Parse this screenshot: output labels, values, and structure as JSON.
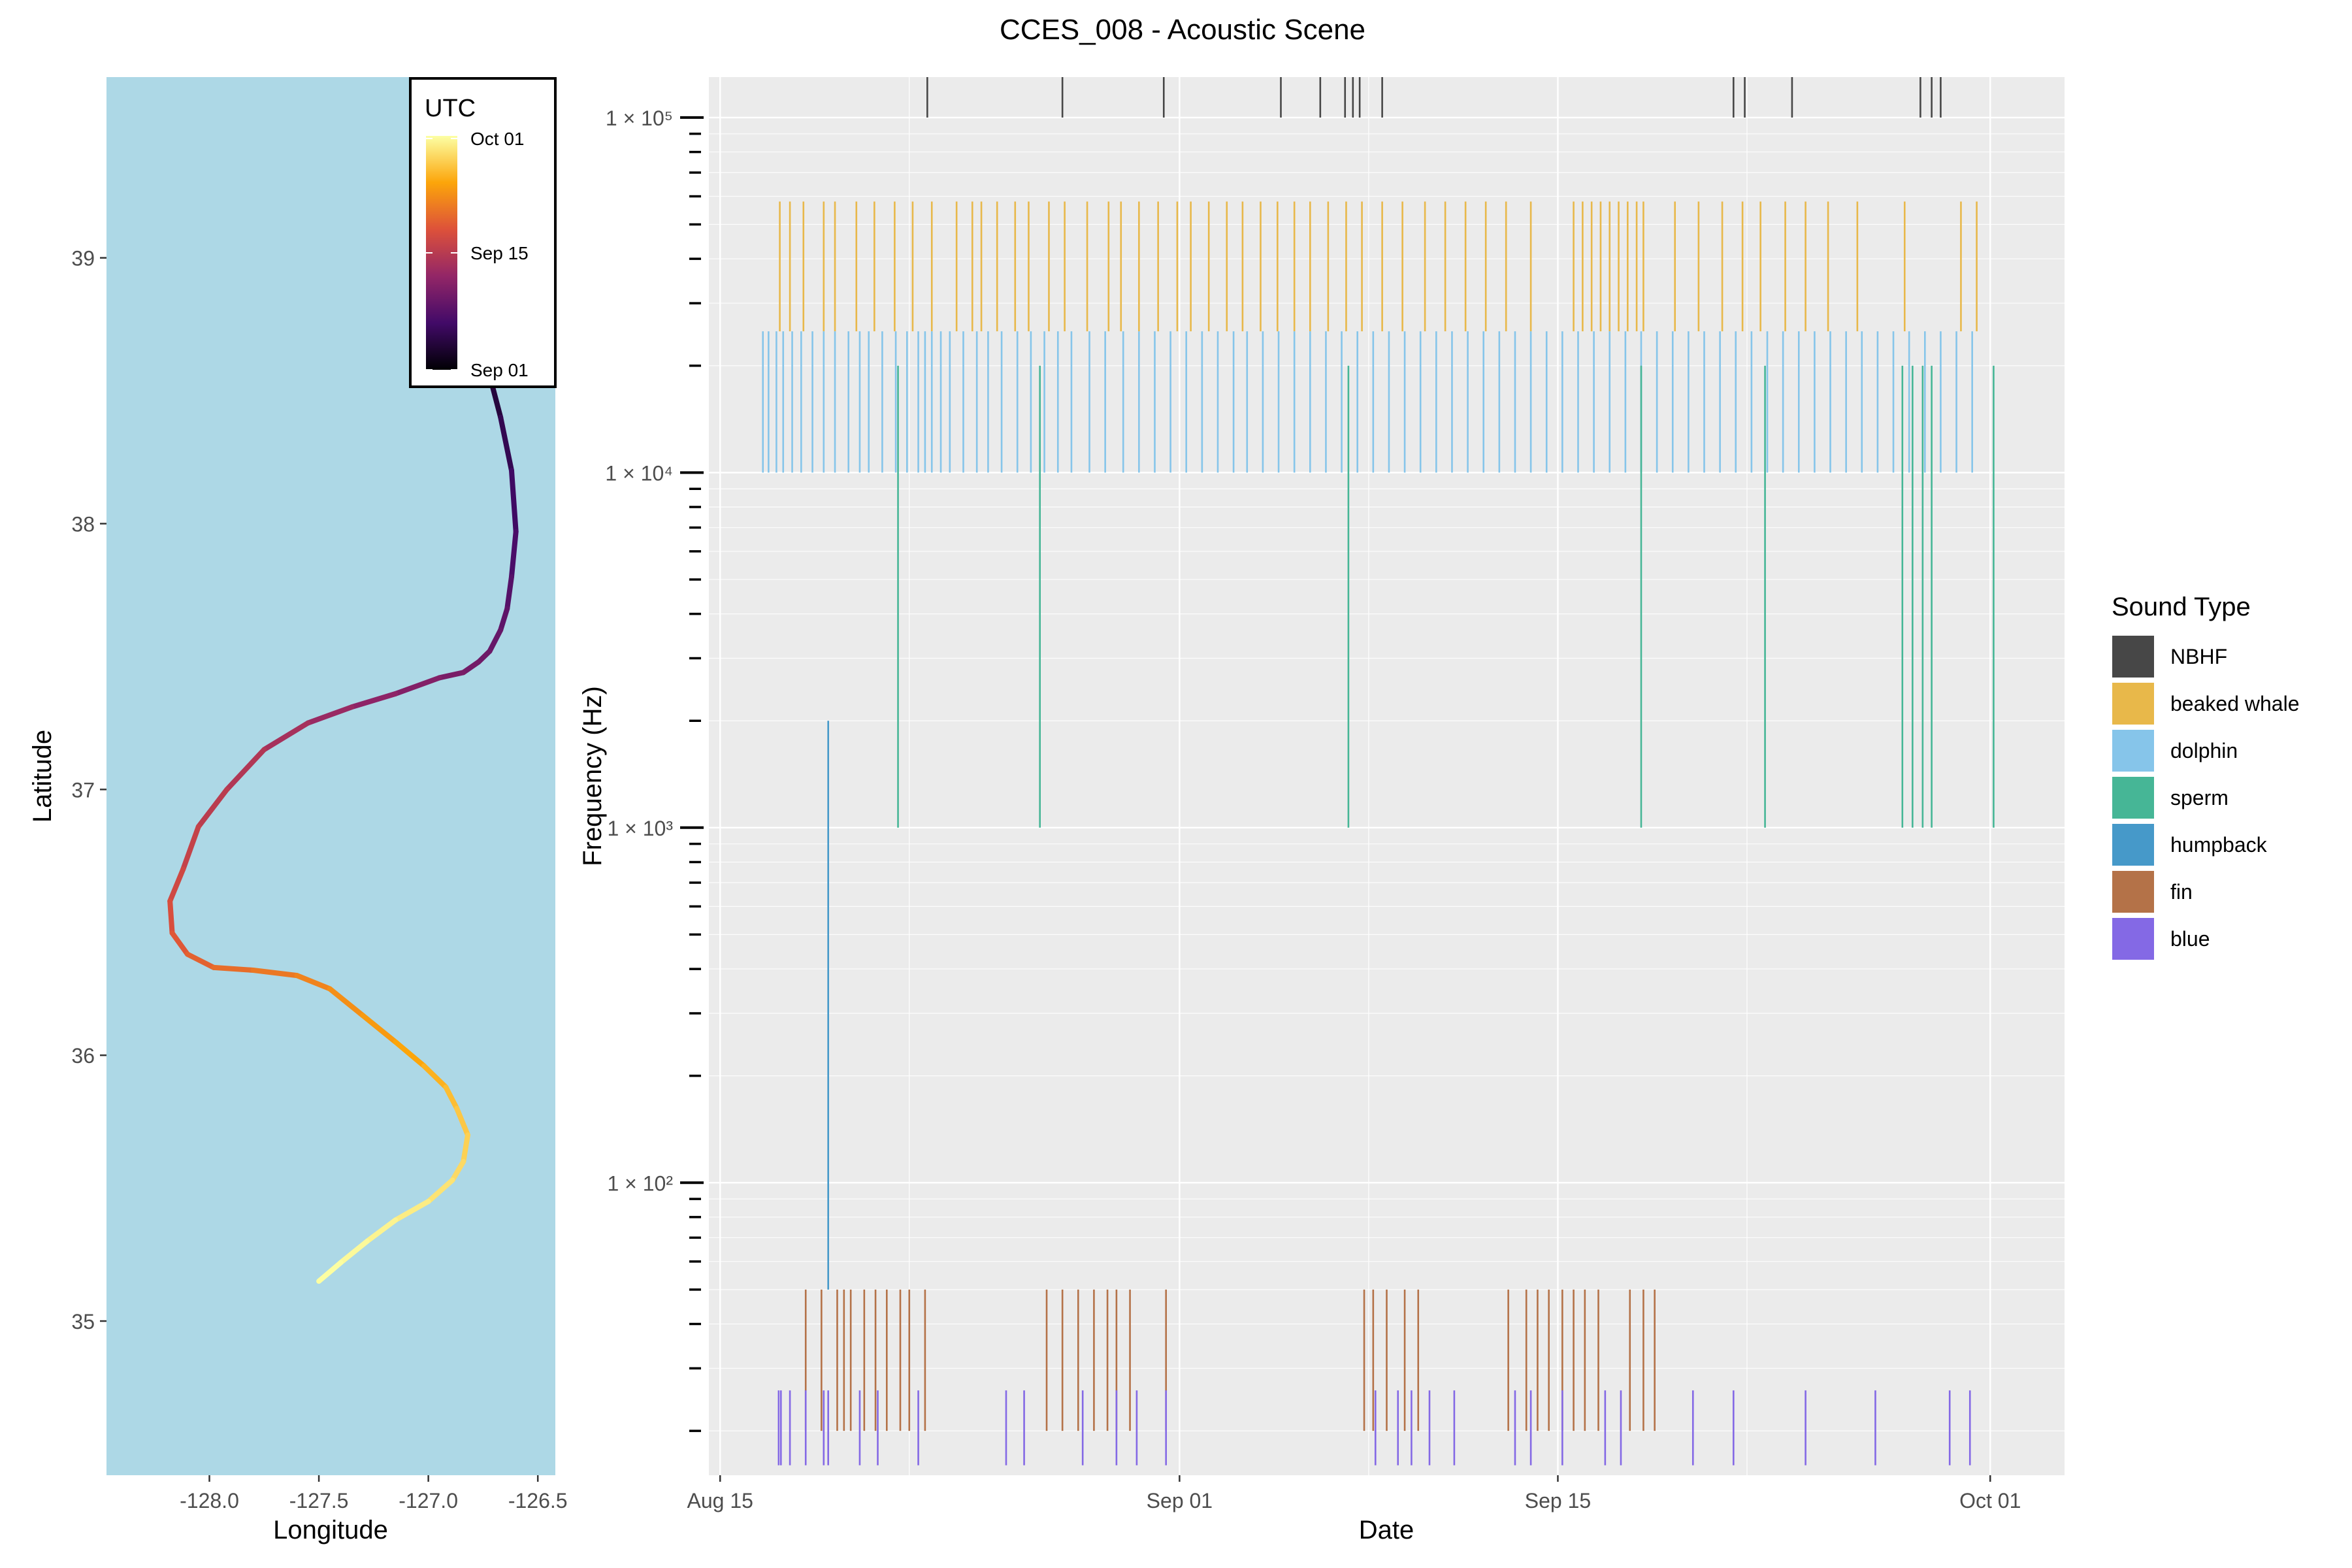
{
  "title": "CCES_008 - Acoustic Scene",
  "colors": {
    "ocean": "#add8e6",
    "panel": "#ebebeb",
    "grid_major": "#ffffff",
    "grid_minor": "#f7f7f7",
    "axis_text": "#4d4d4d"
  },
  "chart_data": [
    {
      "type": "line",
      "name": "track-map",
      "xlabel": "Longitude",
      "ylabel": "Latitude",
      "xlim": [
        -128.47,
        -126.42
      ],
      "ylim": [
        34.42,
        39.68
      ],
      "x_ticks": [
        -128.0,
        -127.5,
        -127.0,
        -126.5
      ],
      "x_tick_labels": [
        "-128.0",
        "-127.5",
        "-127.0",
        "-126.5"
      ],
      "y_ticks": [
        35,
        36,
        37,
        38,
        39
      ],
      "y_tick_labels": [
        "35",
        "36",
        "37",
        "38",
        "39"
      ],
      "grid": false,
      "color_scale": {
        "title": "UTC",
        "palette": "inferno",
        "colors": [
          "#000004",
          "#420a68",
          "#932667",
          "#dd513a",
          "#fca50a",
          "#fcffa4"
        ],
        "breaks": [
          0,
          0.5,
          1
        ],
        "break_labels": [
          "Sep 01",
          "Sep 15",
          "Oct 01"
        ],
        "legend_position": "top-right"
      },
      "track": {
        "lon": [
          -126.86,
          -126.78,
          -126.74,
          -126.67,
          -126.62,
          -126.6,
          -126.62,
          -126.64,
          -126.67,
          -126.72,
          -126.77,
          -126.84,
          -126.95,
          -127.15,
          -127.35,
          -127.55,
          -127.75,
          -127.92,
          -128.05,
          -128.12,
          -128.18,
          -128.17,
          -128.1,
          -127.98,
          -127.8,
          -127.6,
          -127.45,
          -127.3,
          -127.15,
          -127.02,
          -126.92,
          -126.87,
          -126.82,
          -126.84,
          -126.89,
          -127.0,
          -127.15,
          -127.28,
          -127.4,
          -127.5
        ],
        "lat": [
          39.33,
          38.95,
          38.62,
          38.4,
          38.2,
          37.97,
          37.8,
          37.68,
          37.6,
          37.52,
          37.48,
          37.44,
          37.42,
          37.36,
          37.31,
          37.25,
          37.15,
          37.0,
          36.86,
          36.7,
          36.58,
          36.46,
          36.38,
          36.33,
          36.32,
          36.3,
          36.25,
          36.15,
          36.05,
          35.96,
          35.88,
          35.8,
          35.7,
          35.6,
          35.53,
          35.45,
          35.38,
          35.3,
          35.22,
          35.15
        ],
        "t": [
          -0.5,
          -0.43,
          -0.36,
          -0.3,
          -0.24,
          -0.19,
          -0.15,
          -0.11,
          -0.08,
          -0.05,
          -0.03,
          -0.01,
          0.02,
          0.06,
          0.1,
          0.15,
          0.2,
          0.24,
          0.28,
          0.32,
          0.36,
          0.4,
          0.44,
          0.48,
          0.52,
          0.56,
          0.6,
          0.64,
          0.68,
          0.72,
          0.76,
          0.8,
          0.83,
          0.86,
          0.89,
          0.92,
          0.95,
          0.97,
          0.99,
          1.0
        ]
      }
    },
    {
      "type": "bar",
      "name": "acoustic-scene",
      "xlabel": "Date",
      "ylabel": "Frequency (Hz)",
      "xlim": [
        "2018-08-14T14:00",
        "2018-10-03T18:00"
      ],
      "x_ticks": [
        "2018-08-15",
        "2018-09-01",
        "2018-09-15",
        "2018-10-01"
      ],
      "x_tick_labels": [
        "Aug 15",
        "Sep 01",
        "Sep 15",
        "Oct 01"
      ],
      "y_scale": "log",
      "ylim": [
        15,
        130000
      ],
      "y_ticks": [
        100,
        1000,
        10000,
        100000
      ],
      "y_tick_labels": [
        "1 × 10²",
        "1 × 10³",
        "1 × 10⁴",
        "1 × 10⁵"
      ],
      "grid": true,
      "legend_title": "Sound Type",
      "legend_position": "right",
      "series": [
        {
          "name": "NBHF",
          "color": "#474747",
          "fmin": 100000,
          "fmax": 160000,
          "days": [
            "2018-08-22T16:00",
            "2018-08-27T16:00",
            "2018-08-31T10:00",
            "2018-09-04T18:00",
            "2018-09-06T05:00",
            "2018-09-07T03:00",
            "2018-09-07T10:00",
            "2018-09-07T16:00",
            "2018-09-08T12:00",
            "2018-09-21T12:00",
            "2018-09-21T22:00",
            "2018-09-23T16:00",
            "2018-09-28T10:00",
            "2018-09-28T20:00",
            "2018-09-29T04:00"
          ]
        },
        {
          "name": "beaked whale",
          "color": "#e8b84a",
          "fmin": 25000,
          "fmax": 58000,
          "days": [
            "2018-08-17T05:00",
            "2018-08-17T14:00",
            "2018-08-18T02:00",
            "2018-08-18T20:00",
            "2018-08-19T06:00",
            "2018-08-20T01:00",
            "2018-08-20T17:00",
            "2018-08-21T11:00",
            "2018-08-22T03:00",
            "2018-08-22T20:00",
            "2018-08-23T18:00",
            "2018-08-24T08:00",
            "2018-08-24T16:00",
            "2018-08-25T06:00",
            "2018-08-25T22:00",
            "2018-08-26T10:00",
            "2018-08-27T04:00",
            "2018-08-27T18:00",
            "2018-08-28T14:00",
            "2018-08-29T09:00",
            "2018-08-29T20:00",
            "2018-08-30T12:00",
            "2018-08-31T05:00",
            "2018-08-31T22:00",
            "2018-09-01T10:00",
            "2018-09-02T02:00",
            "2018-09-02T18:00",
            "2018-09-03T08:00",
            "2018-09-04T00:00",
            "2018-09-04T15:00",
            "2018-09-05T06:00",
            "2018-09-05T20:00",
            "2018-09-06T12:00",
            "2018-09-07T04:00",
            "2018-09-07T18:00",
            "2018-09-08T12:00",
            "2018-09-09T06:00",
            "2018-09-10T02:00",
            "2018-09-10T20:00",
            "2018-09-11T14:00",
            "2018-09-12T08:00",
            "2018-09-13T02:00",
            "2018-09-14T00:00",
            "2018-09-15T14:00",
            "2018-09-15T22:00",
            "2018-09-16T06:00",
            "2018-09-16T14:00",
            "2018-09-16T22:00",
            "2018-09-17T06:00",
            "2018-09-17T14:00",
            "2018-09-17T22:00",
            "2018-09-18T04:00",
            "2018-09-19T08:00",
            "2018-09-20T05:00",
            "2018-09-21T02:00",
            "2018-09-21T20:00",
            "2018-09-22T12:00",
            "2018-09-23T10:00",
            "2018-09-24T04:00",
            "2018-09-25T00:00",
            "2018-09-26T02:00",
            "2018-09-27T20:00",
            "2018-09-29T22:00",
            "2018-09-30T12:00"
          ]
        },
        {
          "name": "dolphin",
          "color": "#86c5ea",
          "fmin": 10000,
          "fmax": 25000,
          "days": [
            "2018-08-16T14:00",
            "2018-08-16T19:00",
            "2018-08-17T02:00",
            "2018-08-17T08:00",
            "2018-08-17T16:00",
            "2018-08-18T00:00",
            "2018-08-18T10:00",
            "2018-08-18T20:00",
            "2018-08-19T06:00",
            "2018-08-19T18:00",
            "2018-08-20T04:00",
            "2018-08-20T12:00",
            "2018-08-21T00:00",
            "2018-08-21T12:00",
            "2018-08-21T22:00",
            "2018-08-22T08:00",
            "2018-08-22T14:00",
            "2018-08-22T20:00",
            "2018-08-23T04:00",
            "2018-08-23T12:00",
            "2018-08-24T00:00",
            "2018-08-24T12:00",
            "2018-08-24T22:00",
            "2018-08-25T10:00",
            "2018-08-26T00:00",
            "2018-08-26T12:00",
            "2018-08-27T00:00",
            "2018-08-27T12:00",
            "2018-08-28T00:00",
            "2018-08-28T16:00",
            "2018-08-29T06:00",
            "2018-08-29T22:00",
            "2018-08-30T12:00",
            "2018-08-31T02:00",
            "2018-08-31T16:00",
            "2018-09-01T06:00",
            "2018-09-01T20:00",
            "2018-09-02T10:00",
            "2018-09-03T00:00",
            "2018-09-03T12:00",
            "2018-09-04T02:00",
            "2018-09-04T16:00",
            "2018-09-05T06:00",
            "2018-09-05T20:00",
            "2018-09-06T10:00",
            "2018-09-07T00:00",
            "2018-09-07T14:00",
            "2018-09-08T04:00",
            "2018-09-08T18:00",
            "2018-09-09T08:00",
            "2018-09-09T22:00",
            "2018-09-10T12:00",
            "2018-09-11T02:00",
            "2018-09-11T16:00",
            "2018-09-12T06:00",
            "2018-09-12T20:00",
            "2018-09-13T10:00",
            "2018-09-14T00:00",
            "2018-09-14T14:00",
            "2018-09-15T04:00",
            "2018-09-15T18:00",
            "2018-09-16T08:00",
            "2018-09-16T22:00",
            "2018-09-17T12:00",
            "2018-09-18T02:00",
            "2018-09-18T16:00",
            "2018-09-19T06:00",
            "2018-09-19T20:00",
            "2018-09-20T10:00",
            "2018-09-21T00:00",
            "2018-09-21T14:00",
            "2018-09-22T04:00",
            "2018-09-22T18:00",
            "2018-09-23T08:00",
            "2018-09-23T22:00",
            "2018-09-24T12:00",
            "2018-09-25T02:00",
            "2018-09-25T16:00",
            "2018-09-26T06:00",
            "2018-09-26T20:00",
            "2018-09-27T10:00",
            "2018-09-28T00:00",
            "2018-09-28T14:00",
            "2018-09-29T04:00",
            "2018-09-29T18:00",
            "2018-09-30T08:00"
          ]
        },
        {
          "name": "sperm",
          "color": "#46b696",
          "fmin": 1000,
          "fmax": 20000,
          "days": [
            "2018-08-21T14:00",
            "2018-08-26T20:00",
            "2018-09-07T06:00",
            "2018-09-18T02:00",
            "2018-09-22T16:00",
            "2018-09-27T18:00",
            "2018-09-28T03:00",
            "2018-09-28T12:00",
            "2018-09-28T20:00",
            "2018-10-01T03:00"
          ]
        },
        {
          "name": "humpback",
          "color": "#4699c9",
          "fmin": 50,
          "fmax": 2000,
          "days": [
            "2018-08-19T00:00"
          ]
        },
        {
          "name": "fin",
          "color": "#b47248",
          "fmin": 20,
          "fmax": 50,
          "days": [
            "2018-08-18T04:00",
            "2018-08-18T18:00",
            "2018-08-19T08:00",
            "2018-08-19T14:00",
            "2018-08-19T20:00",
            "2018-08-20T08:00",
            "2018-08-20T18:00",
            "2018-08-21T04:00",
            "2018-08-21T16:00",
            "2018-08-22T00:00",
            "2018-08-22T14:00",
            "2018-08-27T02:00",
            "2018-08-27T16:00",
            "2018-08-28T06:00",
            "2018-08-28T20:00",
            "2018-08-29T08:00",
            "2018-08-29T16:00",
            "2018-08-30T04:00",
            "2018-08-31T12:00",
            "2018-09-07T20:00",
            "2018-09-08T04:00",
            "2018-09-08T16:00",
            "2018-09-09T08:00",
            "2018-09-09T20:00",
            "2018-09-13T04:00",
            "2018-09-13T20:00",
            "2018-09-14T06:00",
            "2018-09-14T16:00",
            "2018-09-15T04:00",
            "2018-09-15T14:00",
            "2018-09-16T00:00",
            "2018-09-16T12:00",
            "2018-09-17T16:00",
            "2018-09-18T04:00",
            "2018-09-18T14:00"
          ]
        },
        {
          "name": "blue",
          "color": "#8469e5",
          "fmin": 16,
          "fmax": 26,
          "days": [
            "2018-08-17T04:00",
            "2018-08-17T06:00",
            "2018-08-17T14:00",
            "2018-08-18T04:00",
            "2018-08-18T20:00",
            "2018-08-19T00:00",
            "2018-08-20T04:00",
            "2018-08-20T20:00",
            "2018-08-22T08:00",
            "2018-08-25T14:00",
            "2018-08-26T06:00",
            "2018-08-28T10:00",
            "2018-08-29T16:00",
            "2018-08-30T10:00",
            "2018-08-31T12:00",
            "2018-09-08T06:00",
            "2018-09-09T02:00",
            "2018-09-09T14:00",
            "2018-09-10T06:00",
            "2018-09-11T04:00",
            "2018-09-13T10:00",
            "2018-09-14T00:00",
            "2018-09-15T04:00",
            "2018-09-16T18:00",
            "2018-09-17T08:00",
            "2018-09-20T00:00",
            "2018-09-21T12:00",
            "2018-09-24T04:00",
            "2018-09-26T18:00",
            "2018-09-29T12:00",
            "2018-09-30T06:00"
          ]
        }
      ]
    }
  ]
}
